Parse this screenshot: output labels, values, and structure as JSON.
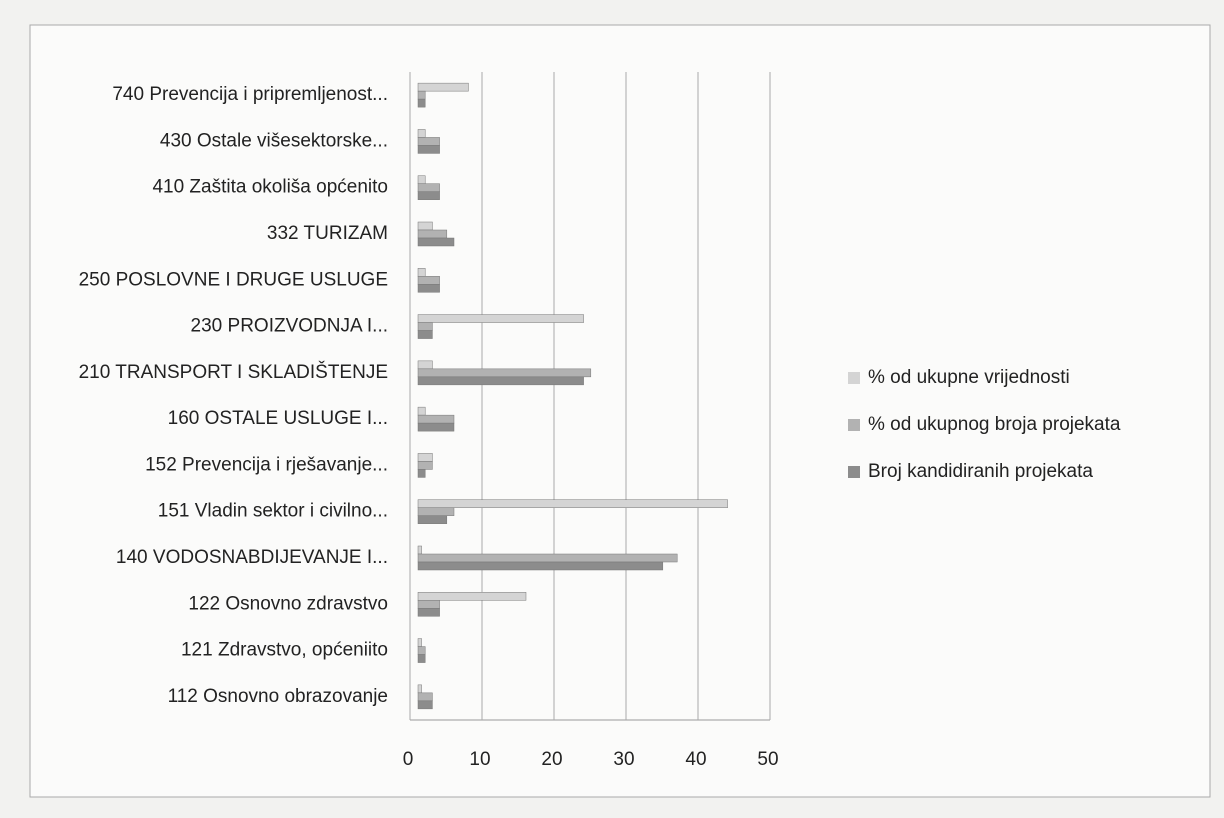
{
  "chart_data": {
    "type": "bar",
    "orientation": "horizontal",
    "categories": [
      "112 Osnovno obrazovanje",
      "121 Zdravstvo, općeniito",
      "122 Osnovno zdravstvo",
      "140 VODOSNABDIJEVANJE I...",
      "151 Vladin sektor i civilno...",
      "152 Prevencija i rješavanje...",
      "160 OSTALE USLUGE I...",
      "210 TRANSPORT I SKLADIŠTENJE",
      "230 PROIZVODNJA I...",
      "250 POSLOVNE I DRUGE USLUGE",
      "332 TURIZAM",
      "410 Zaštita okoliša općenito",
      "430 Ostale višesektorske...",
      "740 Prevencija i pripremljenost..."
    ],
    "series": [
      {
        "name": "% od ukupne vrijednosti",
        "color": "#d4d4d4",
        "values": [
          0.5,
          0.5,
          15,
          0.5,
          43,
          2,
          1,
          2,
          23,
          1,
          2,
          1,
          1,
          7
        ]
      },
      {
        "name": "% od ukupnog broja projekata",
        "color": "#b2b2b2",
        "values": [
          2,
          1,
          3,
          36,
          5,
          2,
          5,
          24,
          2,
          3,
          4,
          3,
          3,
          1
        ]
      },
      {
        "name": "Broj kandidiranih projekata",
        "color": "#8c8c8c",
        "values": [
          2,
          1,
          3,
          34,
          4,
          1,
          5,
          23,
          2,
          3,
          5,
          3,
          3,
          1
        ]
      }
    ],
    "xlim": [
      0,
      50
    ],
    "xticks": [
      0,
      10,
      20,
      30,
      40,
      50
    ],
    "grid": true,
    "legend": "right"
  }
}
